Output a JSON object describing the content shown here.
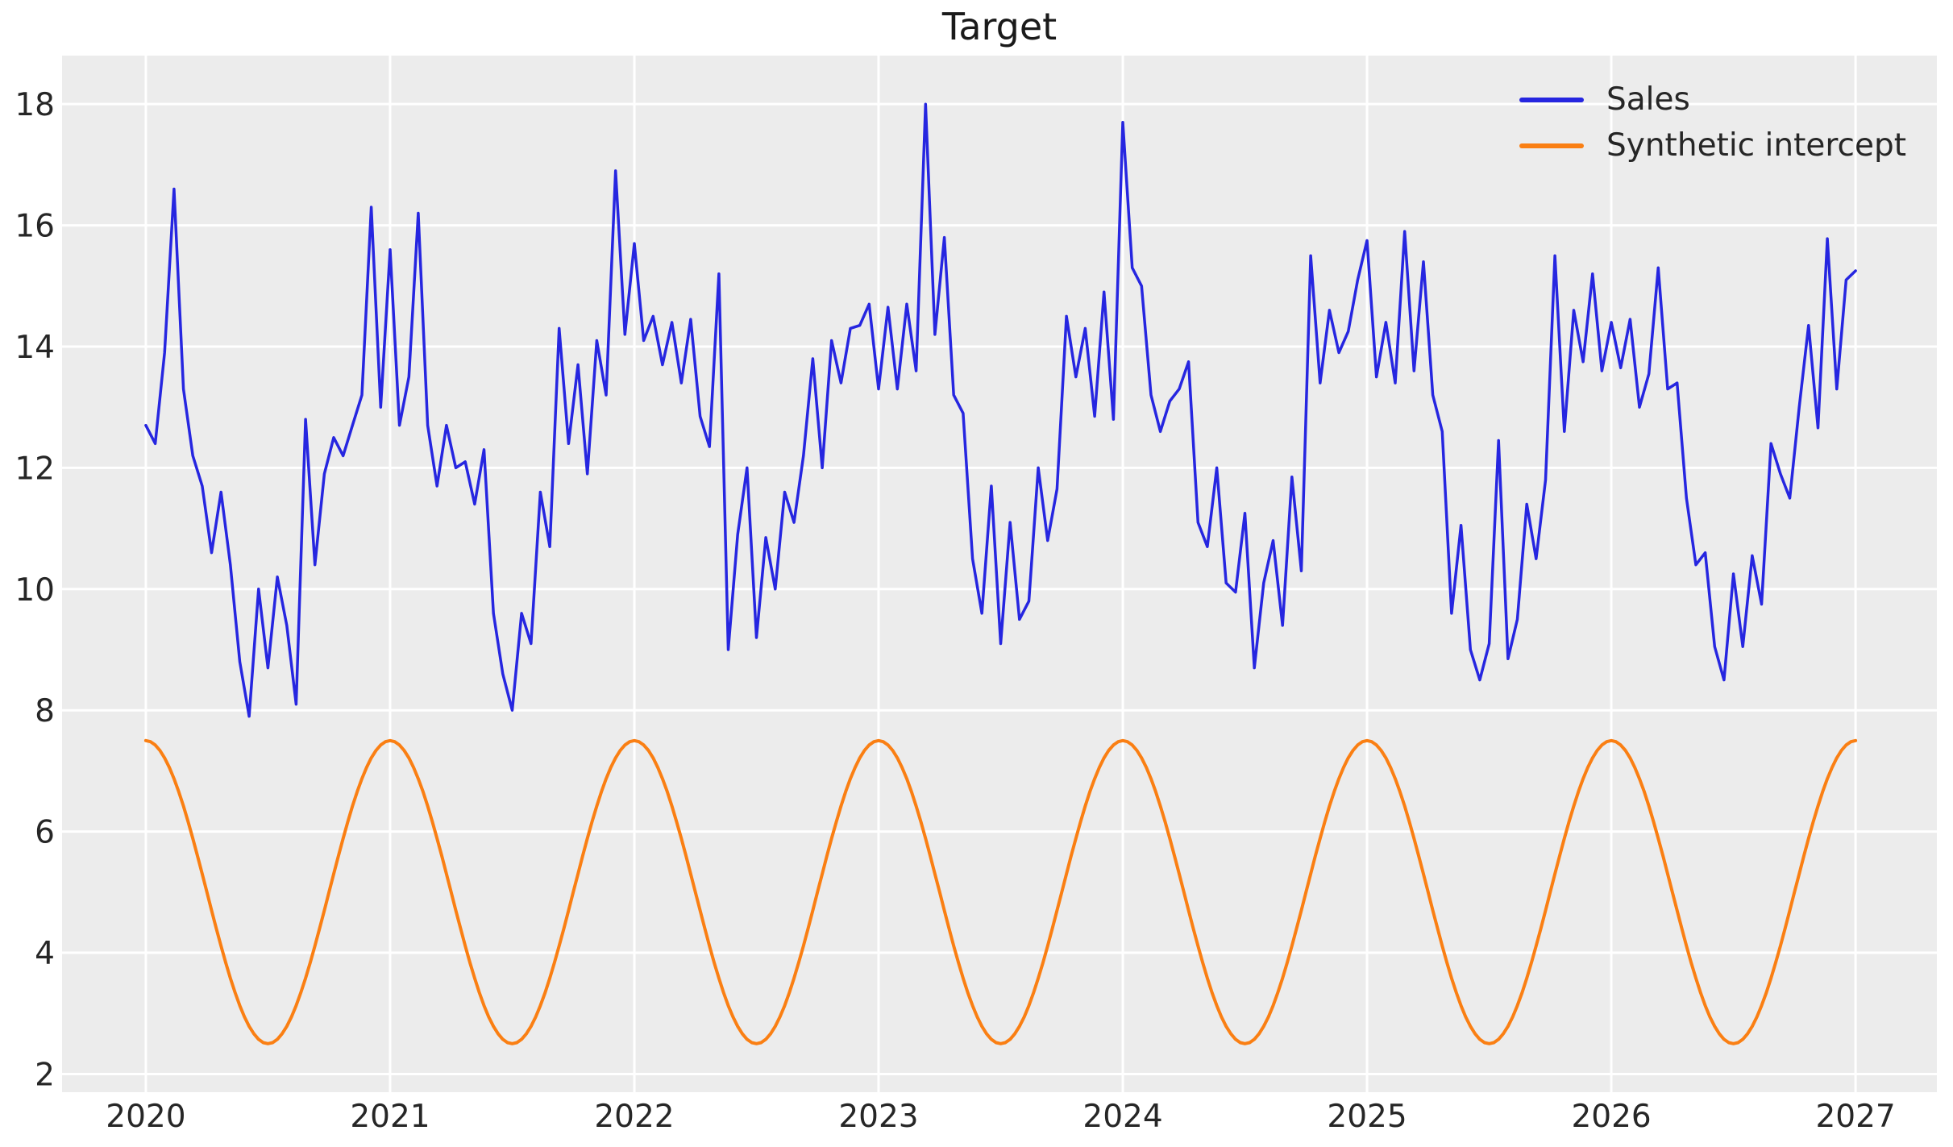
{
  "title": "Target",
  "colors": {
    "figure_background": "#ffffff",
    "plot_background": "#ececec",
    "gridline": "#ffffff",
    "tick_text": "#262626",
    "sales_line": "#2626e0",
    "intercept_line": "#fa7f13"
  },
  "chart_data": {
    "type": "line",
    "title": "Target",
    "xlabel": "",
    "ylabel": "",
    "grid": true,
    "legend_position": "upper right",
    "axes": {
      "xlim": [
        2019.657,
        2027.333
      ],
      "ylim": [
        1.7,
        18.8
      ],
      "x_ticks": [
        2020,
        2021,
        2022,
        2023,
        2024,
        2025,
        2026,
        2027
      ],
      "x_tick_labels": [
        "2020",
        "2021",
        "2022",
        "2023",
        "2024",
        "2025",
        "2026",
        "2027"
      ],
      "y_ticks": [
        2,
        4,
        6,
        8,
        10,
        12,
        14,
        16,
        18
      ],
      "y_tick_labels": [
        "2",
        "4",
        "6",
        "8",
        "10",
        "12",
        "14",
        "16",
        "18"
      ]
    },
    "legend": [
      {
        "label": "Sales",
        "color": "#2626e0"
      },
      {
        "label": "Synthetic intercept",
        "color": "#fa7f13"
      }
    ],
    "series": [
      {
        "name": "Sales",
        "color": "#2626e0",
        "stroke_width": 3.5,
        "x_start": 2020.0,
        "x_step": 0.038461538,
        "values": [
          12.7,
          12.4,
          13.9,
          16.6,
          13.3,
          12.2,
          11.7,
          10.6,
          11.6,
          10.4,
          8.8,
          7.9,
          10.0,
          8.7,
          10.2,
          9.4,
          8.1,
          12.8,
          10.4,
          11.9,
          12.5,
          12.2,
          12.7,
          13.2,
          16.3,
          13.0,
          15.6,
          12.7,
          13.5,
          16.2,
          12.7,
          11.7,
          12.7,
          12.0,
          12.1,
          11.4,
          12.3,
          9.6,
          8.6,
          8.0,
          9.6,
          9.1,
          11.6,
          10.7,
          14.3,
          12.4,
          13.7,
          11.9,
          14.1,
          13.2,
          16.9,
          14.2,
          15.7,
          14.1,
          14.5,
          13.7,
          14.4,
          13.4,
          14.45,
          12.85,
          12.35,
          15.2,
          9.0,
          10.9,
          12.0,
          9.2,
          10.85,
          10.0,
          11.6,
          11.1,
          12.2,
          13.8,
          12.0,
          14.1,
          13.4,
          14.3,
          14.35,
          14.7,
          13.3,
          14.65,
          13.3,
          14.7,
          13.6,
          18.0,
          14.2,
          15.8,
          13.2,
          12.9,
          10.5,
          9.6,
          11.7,
          9.1,
          11.1,
          9.5,
          9.8,
          12.0,
          10.8,
          11.65,
          14.5,
          13.5,
          14.3,
          12.85,
          14.9,
          12.8,
          17.7,
          15.3,
          15.0,
          13.2,
          12.6,
          13.1,
          13.3,
          13.75,
          11.1,
          10.7,
          12.0,
          10.1,
          9.95,
          11.25,
          8.7,
          10.1,
          10.8,
          9.4,
          11.85,
          10.3,
          15.5,
          13.4,
          14.6,
          13.9,
          14.25,
          15.1,
          15.75,
          13.5,
          14.4,
          13.4,
          15.9,
          13.6,
          15.4,
          13.2,
          12.6,
          9.6,
          11.05,
          9.0,
          8.5,
          9.1,
          12.45,
          8.85,
          9.5,
          11.4,
          10.5,
          11.8,
          15.5,
          12.6,
          14.6,
          13.75,
          15.2,
          13.6,
          14.4,
          13.65,
          14.45,
          13.0,
          13.55,
          15.3,
          13.3,
          13.4,
          11.5,
          10.4,
          10.6,
          9.05,
          8.5,
          10.25,
          9.05,
          10.55,
          9.75,
          12.4,
          11.9,
          11.5,
          13.0,
          14.35,
          12.66,
          15.78,
          13.3,
          15.1,
          15.25
        ]
      },
      {
        "name": "Synthetic intercept",
        "color": "#fa7f13",
        "stroke_width": 4,
        "curve": "cosine",
        "base": 5.0,
        "amplitude": 2.5,
        "period_years": 1.0,
        "peak_at_year_start": true,
        "min": 2.5,
        "max": 7.5,
        "x_start": 2020.0,
        "x_end": 2027.0,
        "samples_per_year": 52
      }
    ]
  }
}
